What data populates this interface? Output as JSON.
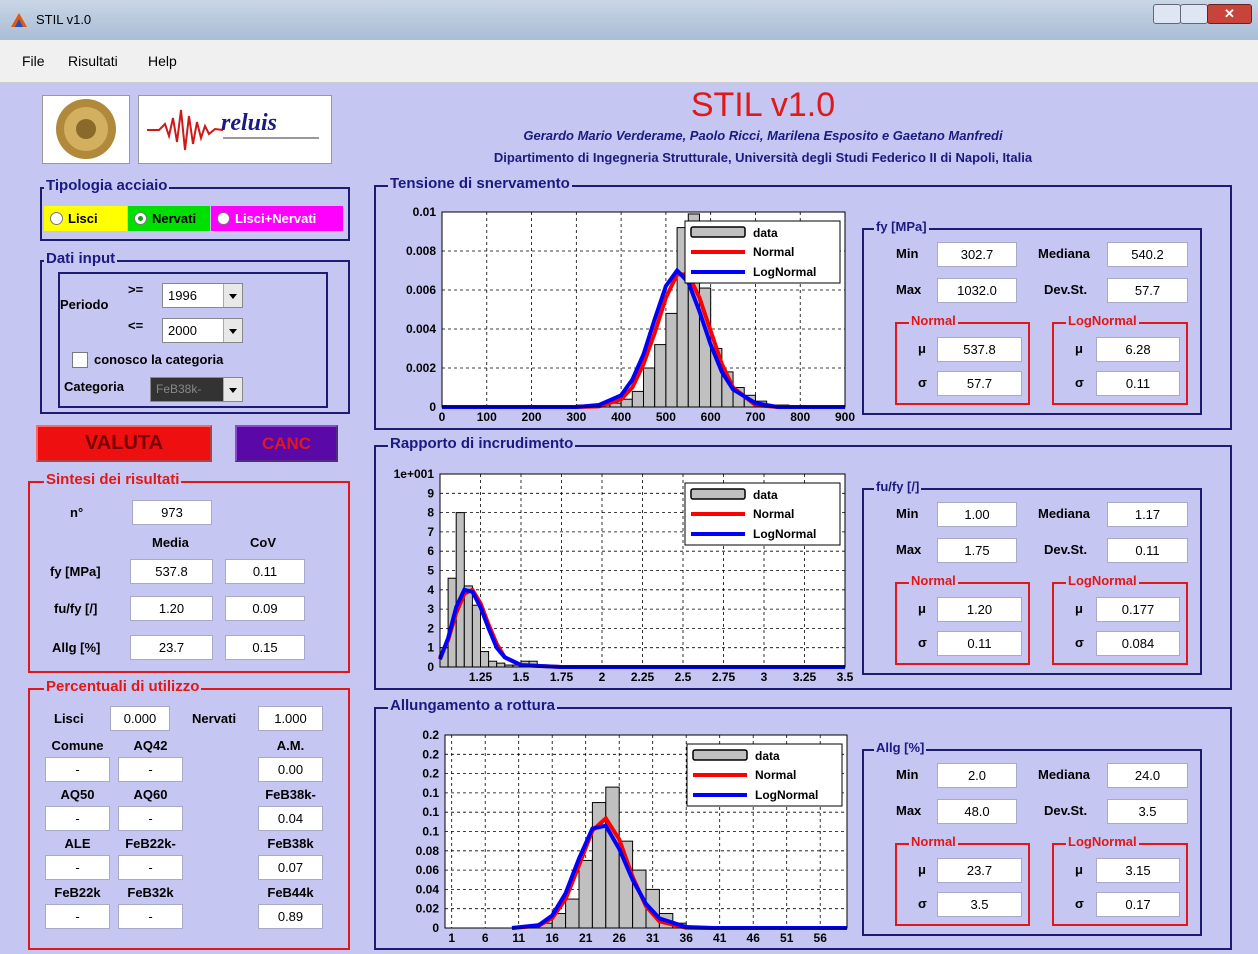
{
  "window": {
    "title": "STIL v1.0"
  },
  "menu": [
    "File",
    "Risultati",
    "Help"
  ],
  "header": {
    "title": "STIL v1.0",
    "authors": "Gerardo Mario Verderame, Paolo Ricci, Marilena Esposito e Gaetano Manfredi",
    "department": "Dipartimento di Ingegneria Strutturale, Università degli Studi Federico II di Napoli, Italia"
  },
  "logo_text": "reluis",
  "tipologia": {
    "title": "Tipologia acciaio",
    "options": [
      "Lisci",
      "Nervati",
      "Lisci+Nervati"
    ],
    "selected": 1
  },
  "dati_input": {
    "title": "Dati input",
    "periodo_label": "Periodo",
    "from_op": ">=",
    "from": "1996",
    "to_op": "<=",
    "to": "2000",
    "checkbox": "conosco la categoria",
    "checked": false,
    "categoria_label": "Categoria",
    "categoria": "FeB38k-"
  },
  "buttons": [
    "VALUTA",
    "CANC"
  ],
  "sintesi": {
    "title": "Sintesi dei risultati",
    "n_label": "n°",
    "n": "973",
    "columns": [
      "Media",
      "CoV"
    ],
    "rows": [
      [
        "fy [MPa]",
        "537.8",
        "0.11"
      ],
      [
        "fu/fy [/]",
        "1.20",
        "0.09"
      ],
      [
        "Allg [%]",
        "23.7",
        "0.15"
      ]
    ]
  },
  "percentuali": {
    "title": "Percentuali di utilizzo",
    "lisci_label": "Lisci",
    "lisci": "0.000",
    "nervati_label": "Nervati",
    "nervati": "1.000",
    "cells": [
      [
        "Comune",
        "-"
      ],
      [
        "AQ42",
        "-"
      ],
      [
        "A.M.",
        "0.00"
      ],
      [
        "AQ50",
        "-"
      ],
      [
        "AQ60",
        "-"
      ],
      [
        "FeB38k-",
        "0.04"
      ],
      [
        "ALE",
        "-"
      ],
      [
        "FeB22k-",
        "-"
      ],
      [
        "FeB38k",
        "0.07"
      ],
      [
        "FeB22k",
        "-"
      ],
      [
        "FeB32k",
        "-"
      ],
      [
        "FeB44k",
        "0.89"
      ]
    ]
  },
  "plots": [
    {
      "title": "Tensione di snervamento",
      "type": "histogram",
      "grid": true,
      "xlim": [
        0,
        900
      ],
      "xticks": [
        0,
        100,
        200,
        300,
        400,
        500,
        600,
        700,
        800,
        900
      ],
      "ylim": [
        0,
        0.01
      ],
      "yticks": [
        0,
        0.002,
        0.004,
        0.006,
        0.008,
        0.01
      ],
      "histogram": {
        "name": "data",
        "color": "#c0c0c0",
        "bins": [
          300,
          325,
          350,
          375,
          400,
          425,
          450,
          475,
          500,
          525,
          550,
          575,
          600,
          625,
          650,
          675,
          700,
          725,
          750,
          775
        ],
        "counts": [
          0.0001,
          0,
          0.0001,
          0.0002,
          0.0004,
          0.0008,
          0.002,
          0.0032,
          0.0048,
          0.0092,
          0.0099,
          0.0061,
          0.003,
          0.0018,
          0.001,
          0.0006,
          0.0003,
          0.0001,
          0.0001
        ]
      },
      "x": [
        0,
        300,
        350,
        400,
        425,
        450,
        475,
        500,
        525,
        550,
        575,
        600,
        625,
        650,
        700,
        750,
        800,
        900
      ],
      "series": [
        {
          "name": "Normal",
          "color": "#ff0000",
          "values": [
            0,
            0,
            3e-05,
            0.0004,
            0.001,
            0.0022,
            0.0038,
            0.0056,
            0.0068,
            0.0068,
            0.0056,
            0.0039,
            0.0022,
            0.001,
            0.0001,
            0,
            0,
            0
          ]
        },
        {
          "name": "LogNormal",
          "color": "#0000ff",
          "values": [
            0,
            0,
            0.0001,
            0.0006,
            0.0014,
            0.0027,
            0.0045,
            0.0062,
            0.007,
            0.0064,
            0.0049,
            0.0032,
            0.0018,
            0.0009,
            0.0002,
            0,
            0,
            0
          ]
        }
      ],
      "stats": {
        "title": "fy [MPa]",
        "min": [
          "Min",
          "302.7"
        ],
        "max": [
          "Max",
          "1032.0"
        ],
        "median": [
          "Mediana",
          "540.2"
        ],
        "std": [
          "Dev.St.",
          "57.7"
        ],
        "normal": {
          "title": "Normal",
          "mu": [
            "μ",
            "537.8"
          ],
          "sigma": [
            "σ",
            "57.7"
          ]
        },
        "lognormal": {
          "title": "LogNormal",
          "mu": [
            "μ",
            "6.28"
          ],
          "sigma": [
            "σ",
            "0.11"
          ]
        }
      }
    },
    {
      "title": "Rapporto di incrudimento",
      "type": "histogram",
      "grid": true,
      "xlim": [
        1,
        3.5
      ],
      "xticks": [
        1.25,
        1.5,
        1.75,
        2,
        2.25,
        2.5,
        2.75,
        3,
        3.25,
        3.5
      ],
      "ylim": [
        0,
        10
      ],
      "yticks": [
        0,
        1,
        2,
        3,
        4,
        5,
        6,
        7,
        8,
        9,
        {
          "value": 10,
          "label": "1e+001"
        }
      ],
      "histogram": {
        "name": "data",
        "color": "#c0c0c0",
        "bins": [
          1,
          1.05,
          1.1,
          1.15,
          1.2,
          1.25,
          1.3,
          1.35,
          1.4,
          1.45,
          1.5,
          1.55,
          1.6,
          1.65,
          1.7,
          1.75
        ],
        "counts": [
          1,
          4.6,
          8,
          4.2,
          3.2,
          0.8,
          0.3,
          0.2,
          0.1,
          0.1,
          0.3,
          0.3,
          0.1,
          0.1,
          0.05
        ]
      },
      "x": [
        1,
        1.05,
        1.1,
        1.15,
        1.2,
        1.25,
        1.3,
        1.35,
        1.4,
        1.5,
        1.75,
        2,
        3.5
      ],
      "series": [
        {
          "name": "Normal",
          "color": "#ff0000",
          "values": [
            0.5,
            1.4,
            2.8,
            3.8,
            4,
            3.3,
            2.2,
            1.2,
            0.5,
            0.1,
            0,
            0,
            0
          ]
        },
        {
          "name": "LogNormal",
          "color": "#0000ff",
          "values": [
            0.4,
            1.5,
            3.1,
            4,
            3.9,
            3.1,
            2,
            1,
            0.5,
            0.1,
            0,
            0,
            0
          ]
        }
      ],
      "stats": {
        "title": "fu/fy [/]",
        "min": [
          "Min",
          "1.00"
        ],
        "max": [
          "Max",
          "1.75"
        ],
        "median": [
          "Mediana",
          "1.17"
        ],
        "std": [
          "Dev.St.",
          "0.11"
        ],
        "normal": {
          "title": "Normal",
          "mu": [
            "μ",
            "1.20"
          ],
          "sigma": [
            "σ",
            "0.11"
          ]
        },
        "lognormal": {
          "title": "LogNormal",
          "mu": [
            "μ",
            "0.177"
          ],
          "sigma": [
            "σ",
            "0.084"
          ]
        }
      }
    },
    {
      "title": "Allungamento a rottura",
      "type": "histogram",
      "grid": true,
      "xlim": [
        0,
        60
      ],
      "xticks": [
        1,
        6,
        11,
        16,
        21,
        26,
        31,
        36,
        41,
        46,
        51,
        56
      ],
      "ylim": [
        0,
        0.2
      ],
      "yticks": [
        0,
        0.02,
        0.04,
        0.06,
        0.08,
        0.1,
        {
          "value": 0.12,
          "label": "0.1"
        },
        {
          "value": 0.14,
          "label": "0.1"
        },
        {
          "value": 0.16,
          "label": "0.2"
        },
        {
          "value": 0.18,
          "label": "0.2"
        },
        0.2
      ],
      "histogram": {
        "name": "data",
        "color": "#c0c0c0",
        "bins": [
          14,
          16,
          18,
          20,
          22,
          24,
          26,
          28,
          30,
          32,
          34,
          36
        ],
        "counts": [
          0.005,
          0.015,
          0.03,
          0.07,
          0.13,
          0.146,
          0.09,
          0.06,
          0.04,
          0.015,
          0.005
        ]
      },
      "x": [
        10,
        14,
        16,
        18,
        20,
        22,
        24,
        26,
        28,
        30,
        32,
        36,
        40,
        60
      ],
      "series": [
        {
          "name": "Normal",
          "color": "#ff0000",
          "values": [
            0,
            0.0024,
            0.0102,
            0.03,
            0.065,
            0.101,
            0.1136,
            0.092,
            0.053,
            0.0226,
            0.0069,
            0.0002,
            0,
            0
          ]
        },
        {
          "name": "LogNormal",
          "color": "#0000ff",
          "values": [
            0,
            0.003,
            0.013,
            0.036,
            0.072,
            0.103,
            0.106,
            0.082,
            0.05,
            0.025,
            0.01,
            0.001,
            0,
            0
          ]
        }
      ],
      "stats": {
        "title": "Allg [%]",
        "min": [
          "Min",
          "2.0"
        ],
        "max": [
          "Max",
          "48.0"
        ],
        "median": [
          "Mediana",
          "24.0"
        ],
        "std": [
          "Dev.St.",
          "3.5"
        ],
        "normal": {
          "title": "Normal",
          "mu": [
            "μ",
            "23.7"
          ],
          "sigma": [
            "σ",
            "3.5"
          ]
        },
        "lognormal": {
          "title": "LogNormal",
          "mu": [
            "μ",
            "3.15"
          ],
          "sigma": [
            "σ",
            "0.17"
          ]
        }
      }
    }
  ]
}
